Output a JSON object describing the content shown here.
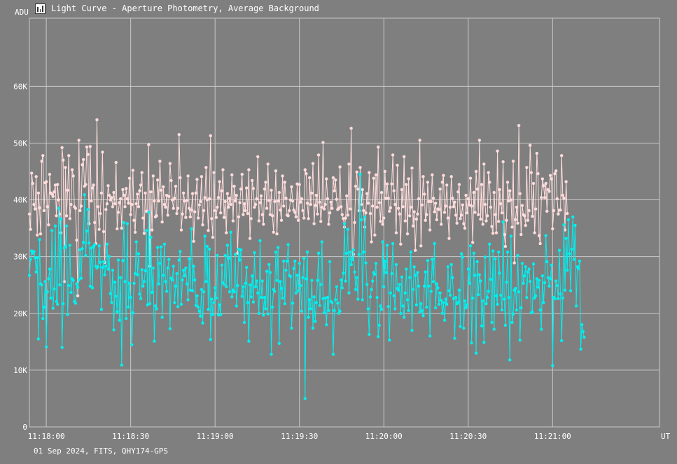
{
  "window": {
    "title": "Light Curve - Aperture Photometry, Average Background"
  },
  "footer": {
    "note": "01 Sep 2024, FITS, QHY174-GPS"
  },
  "chart_data": {
    "type": "line",
    "title": "Light Curve - Aperture Photometry, Average Background",
    "xlabel": "UT",
    "ylabel": "ADU",
    "xlim": [
      "11:17:54",
      "11:21:38"
    ],
    "ylim": [
      0,
      72000
    ],
    "grid": true,
    "x_ticks": [
      "11:18:00",
      "11:18:30",
      "11:19:00",
      "11:19:30",
      "11:20:00",
      "11:20:30",
      "11:21:00"
    ],
    "y_ticks": [
      {
        "value": 0,
        "label": "0"
      },
      {
        "value": 10000,
        "label": "10K"
      },
      {
        "value": 20000,
        "label": "20K"
      },
      {
        "value": 30000,
        "label": "30K"
      },
      {
        "value": 40000,
        "label": "40K"
      },
      {
        "value": 50000,
        "label": "50K"
      },
      {
        "value": 60000,
        "label": "60K"
      }
    ],
    "x_start": "11:17:54",
    "x_step_seconds": 0.4,
    "series": [
      {
        "color": "#ffdcdc",
        "values": [
          37500,
          34800,
          44700,
          42900,
          39200,
          38400,
          44100,
          33800,
          41200,
          38600,
          34000,
          46800,
          47800,
          38100,
          43000,
          43200,
          38800,
          35600,
          44500,
          41200,
          41000,
          40600,
          41400,
          42600,
          37200,
          42700,
          40000,
          37500,
          34200,
          49200,
          47000,
          25600,
          45700,
          37200,
          41700,
          47800,
          36700,
          39200,
          45300,
          44200,
          38800,
          38500,
          32900,
          23100,
          50500,
          38100,
          38900,
          46200,
          47100,
          42400,
          42700,
          49300,
          48000,
          35800,
          49400,
          39800,
          42100,
          42600,
          36000,
          32300,
          54100,
          38800,
          34800,
          37600,
          41200,
          48400,
          34400,
          29000,
          38300,
          39300,
          42500,
          40800,
          40000,
          40400,
          38800,
          41300,
          39300,
          46600,
          34900,
          37800,
          39500,
          40200,
          35000,
          41800,
          40800,
          38800,
          42000,
          40200,
          39400,
          43800,
          37400,
          39200,
          45200,
          36400,
          34300,
          39300,
          41000,
          38800,
          41600,
          42600,
          44800,
          36800,
          34100,
          41200,
          38000,
          37900,
          49700,
          28300,
          41400,
          34700,
          44200,
          39800,
          37000,
          37200,
          43500,
          39800,
          46800,
          41700,
          36100,
          42300,
          39200,
          38700,
          40800,
          37300,
          40600,
          46400,
          43400,
          40000,
          38500,
          40300,
          42400,
          37600,
          38500,
          51500,
          43900,
          34700,
          37500,
          41200,
          39800,
          36900,
          39900,
          44200,
          38500,
          37000,
          38200,
          41100,
          32700,
          37900,
          41200,
          43600,
          36800,
          39100,
          39700,
          44100,
          35600,
          38100,
          40400,
          45700,
          40000,
          34600,
          40200,
          51300,
          36700,
          33400,
          44800,
          38100,
          36900,
          38700,
          40400,
          43200,
          37700,
          41600,
          45300,
          36900,
          39700,
          34200,
          41100,
          38700,
          40300,
          39200,
          44400,
          36300,
          42400,
          39800,
          40800,
          30600,
          37000,
          39500,
          41900,
          44500,
          37400,
          39300,
          38100,
          42100,
          37600,
          45300,
          33200,
          36700,
          43400,
          42000,
          38700,
          39200,
          40200,
          47600,
          36300,
          39500,
          40700,
          37400,
          35700,
          41900,
          43100,
          38500,
          46300,
          39900,
          37400,
          41700,
          37200,
          34300,
          39700,
          45100,
          34000,
          39800,
          41300,
          38200,
          36400,
          44200,
          38900,
          43100,
          40300,
          37300,
          37200,
          38100,
          40000,
          42300,
          39800,
          38200,
          37800,
          37000,
          42800,
          36400,
          42700,
          39600,
          40200,
          38100,
          36800,
          45300,
          44600,
          39400,
          36700,
          43900,
          39200,
          41200,
          46400,
          35800,
          39000,
          40800,
          37500,
          47900,
          39600,
          36200,
          38700,
          50100,
          38400,
          39200,
          43700,
          40200,
          35700,
          37700,
          39600,
          38500,
          43900,
          41600,
          43500,
          40100,
          38300,
          38500,
          45800,
          38800,
          37400,
          36700,
          35200,
          36800,
          40700,
          37300,
          46300,
          38400,
          52600,
          29500,
          30400,
          36000,
          42400,
          44900,
          41900,
          38100,
          45700,
          39200,
          41800,
          38100,
          35200,
          37700,
          41100,
          39400,
          44800,
          37600,
          32600,
          38900,
          43800,
          33800,
          44400,
          38700,
          49300,
          39500,
          36200,
          41300,
          35700,
          36800,
          45000,
          40300,
          42800,
          40300,
          38000,
          38600,
          42800,
          47900,
          41600,
          39200,
          34200,
          46100,
          38500,
          37500,
          32200,
          41800,
          38800,
          47600,
          36300,
          42700,
          34000,
          43700,
          37200,
          38700,
          45600,
          35400,
          37900,
          31100,
          36600,
          37500,
          40200,
          50500,
          31900,
          39100,
          44100,
          41000,
          36400,
          37400,
          43100,
          39700,
          34700,
          39700,
          44400,
          40300,
          37900,
          39400,
          36500,
          38400,
          38300,
          41900,
          35700,
          43100,
          44300,
          37800,
          38900,
          42600,
          36800,
          33200,
          38700,
          44100,
          40300,
          38800,
          39600,
          37300,
          35900,
          41400,
          42700,
          36700,
          37300,
          39100,
          35800,
          35000,
          40800,
          37700,
          40200,
          39100,
          43800,
          38900,
          32500,
          41300,
          37800,
          45000,
          41900,
          37400,
          50500,
          36600,
          42700,
          35700,
          46300,
          39200,
          36300,
          37200,
          44800,
          43100,
          38700,
          35300,
          34100,
          41300,
          37400,
          34200,
          48600,
          36200,
          41800,
          39300,
          37700,
          46700,
          33900,
          31800,
          36400,
          43100,
          39800,
          41600,
          40000,
          35200,
          46800,
          28900,
          36500,
          38700,
          35900,
          53100,
          41100,
          33900,
          39000,
          37400,
          37200,
          35500,
          45700,
          36400,
          38100,
          49600,
          44800,
          37100,
          42900,
          34200,
          38400,
          48200,
          44600,
          33700,
          32300,
          40400,
          43700,
          42500,
          40400,
          42900,
          38000,
          41800,
          41500,
          44300,
          43700,
          34900,
          38100,
          44600,
          45100,
          40200,
          37500,
          38200,
          38200,
          47800,
          40800,
          40300,
          34700,
          43200,
          37600
        ]
      },
      {
        "color": "#00f0f0",
        "values": [
          26700,
          29500,
          31000,
          30600,
          30900,
          29800,
          27300,
          29800,
          15500,
          33000,
          25200,
          25000,
          19100,
          21100,
          25600,
          14100,
          23800,
          26100,
          27800,
          22700,
          34600,
          20900,
          24300,
          35400,
          22100,
          21600,
          38500,
          25000,
          36600,
          14000,
          21700,
          31500,
          31800,
          35400,
          19800,
          24900,
          32000,
          23700,
          26100,
          25800,
          22100,
          21800,
          25200,
          24600,
          25900,
          31200,
          26200,
          31400,
          32500,
          40900,
          30200,
          34500,
          38300,
          32400,
          24800,
          31500,
          24500,
          31800,
          32100,
          28300,
          28000,
          28200,
          31900,
          29000,
          20700,
          28100,
          29100,
          26800,
          28300,
          32200,
          27800,
          30000,
          23500,
          21900,
          27600,
          17100,
          25500,
          23000,
          20300,
          29400,
          18800,
          26300,
          10900,
          29300,
          36000,
          25600,
          19100,
          35800,
          21100,
          25300,
          22800,
          14500,
          20100,
          25300,
          27000,
          32600,
          26800,
          30500,
          23400,
          22600,
          27700,
          24800,
          25600,
          27500,
          34600,
          21500,
          37800,
          21700,
          33400,
          23700,
          28000,
          15100,
          21300,
          20800,
          31600,
          25200,
          28800,
          31700,
          19300,
          26700,
          32200,
          25600,
          23900,
          28000,
          29500,
          17300,
          26200,
          25900,
          28300,
          21900,
          24800,
          27000,
          21200,
          29400,
          30900,
          21600,
          25900,
          27600,
          26600,
          28000,
          25200,
          22400,
          29600,
          24100,
          34900,
          24000,
          28300,
          25900,
          21400,
          23100,
          21100,
          20400,
          19500,
          24200,
          18300,
          23800,
          33600,
          25600,
          31800,
          20700,
          31300,
          15400,
          22500,
          19800,
          21900,
          24500,
          22700,
          30200,
          19700,
          21500,
          19800,
          28500,
          25400,
          25100,
          30200,
          24700,
          32000,
          29700,
          23800,
          34300,
          22900,
          24100,
          23800,
          30400,
          21300,
          24900,
          31300,
          29400,
          31200,
          23000,
          24700,
          18400,
          25300,
          28100,
          21900,
          15100,
          25000,
          22900,
          26600,
          22000,
          30700,
          24700,
          25700,
          23600,
          20000,
          32800,
          22800,
          25700,
          19700,
          22800,
          20800,
          27400,
          19900,
          28600,
          27200,
          12800,
          21100,
          24200,
          23900,
          30800,
          25800,
          31600,
          14700,
          25600,
          24400,
          22700,
          29200,
          21700,
          27600,
          29200,
          32100,
          26700,
          26500,
          17400,
          21800,
          27900,
          29200,
          23600,
          26700,
          24000,
          28800,
          24900,
          20400,
          26300,
          29700,
          5000,
          26100,
          30800,
          19300,
          22400,
          20800,
          25800,
          17400,
          22900,
          18600,
          21900,
          25800,
          30600,
          21400,
          25100,
          32600,
          22600,
          20100,
          22700,
          18000,
          22800,
          20500,
          29100,
          22100,
          21900,
          12800,
          20500,
          22400,
          24700,
          21800,
          20000,
          20400,
          25900,
          24500,
          27100,
          35800,
          25700,
          30600,
          34800,
          23600,
          30800,
          28600,
          29500,
          31200,
          27300,
          24200,
          26300,
          22500,
          30400,
          44500,
          36500,
          22400,
          30800,
          37000,
          28900,
          25100,
          20800,
          16300,
          22900,
          24200,
          25700,
          27200,
          26900,
          28800,
          22800,
          15900,
          17900,
          21300,
          20700,
          32600,
          24700,
          29200,
          27200,
          32000,
          21200,
          15300,
          23600,
          27000,
          32300,
          23100,
          20800,
          28600,
          24400,
          24100,
          25100,
          20000,
          26400,
          21300,
          19300,
          23600,
          27800,
          22400,
          20500,
          26300,
          30800,
          17000,
          24200,
          28200,
          26700,
          21500,
          27200,
          24800,
          20200,
          21700,
          20500,
          19600,
          24800,
          27300,
          21100,
          29300,
          24800,
          16000,
          23900,
          29500,
          25600,
          32300,
          21000,
          25200,
          24500,
          21600,
          23600,
          22300,
          20000,
          21900,
          18800,
          22500,
          21600,
          28200,
          24000,
          23200,
          28600,
          26300,
          22600,
          15600,
          22800,
          21700,
          21900,
          24100,
          17700,
          30500,
          29900,
          17400,
          22200,
          21000,
          21500,
          27800,
          25300,
          31900,
          14800,
          22700,
          30600,
          26700,
          13000,
          29100,
          23300,
          26800,
          25700,
          17800,
          22200,
          14900,
          29900,
          21700,
          22800,
          23900,
          32200,
          26000,
          18400,
          31000,
          17200,
          29600,
          23100,
          21600,
          30800,
          27100,
          23200,
          20600,
          36100,
          22500,
          17900,
          25500,
          30800,
          22800,
          11800,
          33600,
          18400,
          19900,
          24100,
          24400,
          20600,
          30200,
          23800,
          15300,
          21000,
          28800,
          25300,
          26600,
          28200,
          22800,
          27300,
          27800,
          25600,
          20100,
          20200,
          28700,
          22700,
          23100,
          26100,
          24600,
          25800,
          20600,
          17200,
          26600,
          21900,
          25400,
          33700,
          29100,
          26300,
          24800,
          26100,
          28500,
          10800,
          22800,
          22600,
          25700,
          24900,
          22600,
          31100,
          23400,
          15200,
          22700,
          35600,
          24100,
          33200,
          27600,
          36500,
          30500,
          24000,
          31300,
          37000,
          29500,
          35500,
          21300,
          28200,
          27900,
          29200,
          13700,
          18000,
          16800,
          15800
        ]
      }
    ]
  }
}
